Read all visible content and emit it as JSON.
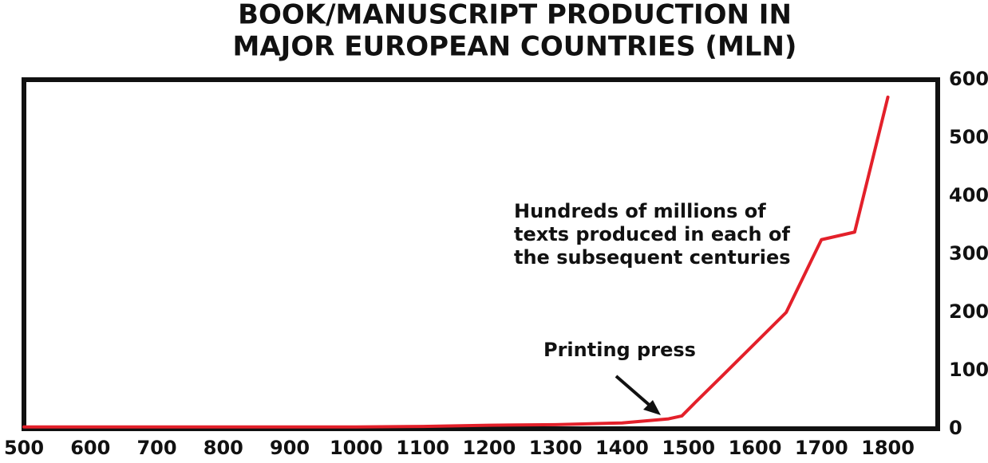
{
  "chart_data": {
    "type": "line",
    "title": [
      "BOOK/MANUSCRIPT PRODUCTION IN",
      "MAJOR EUROPEAN COUNTRIES (MLN)"
    ],
    "x": [
      500,
      1000,
      1100,
      1200,
      1300,
      1400,
      1470,
      1490,
      1510,
      1550,
      1647,
      1700,
      1750,
      1800
    ],
    "series": [
      {
        "name": null,
        "color": "#e3202a",
        "values": [
          3,
          3,
          4,
          6,
          7,
          10,
          17,
          22,
          45,
          90,
          200,
          325,
          338,
          570
        ]
      }
    ],
    "xlim": [
      500,
      1875
    ],
    "xticks": [
      500,
      600,
      700,
      800,
      900,
      1000,
      1100,
      1200,
      1300,
      1400,
      1500,
      1600,
      1700,
      1800
    ],
    "ylim": [
      0,
      600
    ],
    "yticks": [
      0,
      100,
      200,
      300,
      400,
      500,
      600
    ],
    "y_axis_side": "right",
    "annotations": [
      {
        "text": "Printing press"
      },
      {
        "text": [
          "Hundreds of millions of",
          "texts produced in each of",
          "the subsequent centuries"
        ]
      }
    ]
  }
}
